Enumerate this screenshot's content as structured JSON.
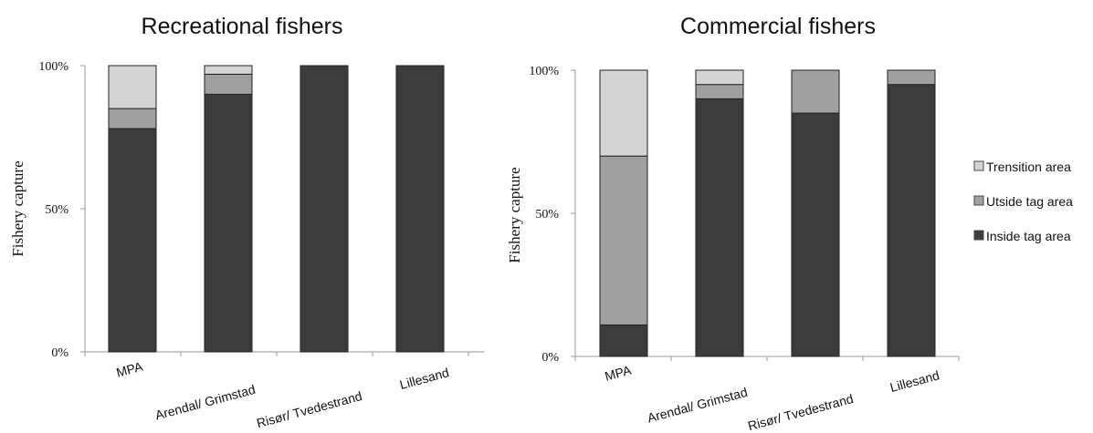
{
  "chart_data": [
    {
      "type": "bar",
      "stacked": true,
      "title": "Recreational fishers",
      "ylabel": "Fishery capture",
      "xlabel": "",
      "ylim": [
        0,
        100
      ],
      "y_ticks": [
        "0%",
        "50%",
        "100%"
      ],
      "categories": [
        "MPA",
        "Arendal/ Grimstad",
        "Risør/ Tvedestrand",
        "Lillesand"
      ],
      "series": [
        {
          "name": "Inside tag area",
          "color": "#3c3c3c",
          "values": [
            78,
            90,
            100,
            100
          ]
        },
        {
          "name": "Utside tag area",
          "color": "#a0a0a0",
          "values": [
            7,
            7,
            0,
            0
          ]
        },
        {
          "name": "Trensition area",
          "color": "#d4d4d4",
          "values": [
            15,
            3,
            0,
            0
          ]
        }
      ],
      "legend": "none",
      "grid": false
    },
    {
      "type": "bar",
      "stacked": true,
      "title": "Commercial  fishers",
      "ylabel": "Fishery capture",
      "xlabel": "",
      "ylim": [
        0,
        100
      ],
      "y_ticks": [
        "0%",
        "50%",
        "100%"
      ],
      "categories": [
        "MPA",
        "Arendal/ Grimstad",
        "Risør/ Tvedestrand",
        "Lillesand"
      ],
      "series": [
        {
          "name": "Inside tag area",
          "color": "#3c3c3c",
          "values": [
            11,
            90,
            85,
            95
          ]
        },
        {
          "name": "Utside tag area",
          "color": "#a0a0a0",
          "values": [
            59,
            5,
            15,
            5
          ]
        },
        {
          "name": "Trensition area",
          "color": "#d4d4d4",
          "values": [
            30,
            5,
            0,
            0
          ]
        }
      ],
      "legend": "right",
      "grid": false
    }
  ],
  "legend_items": [
    {
      "label": "Trensition area",
      "color": "#d4d4d4"
    },
    {
      "label": "Utside tag area",
      "color": "#a0a0a0"
    },
    {
      "label": "Inside tag area",
      "color": "#3c3c3c"
    }
  ]
}
